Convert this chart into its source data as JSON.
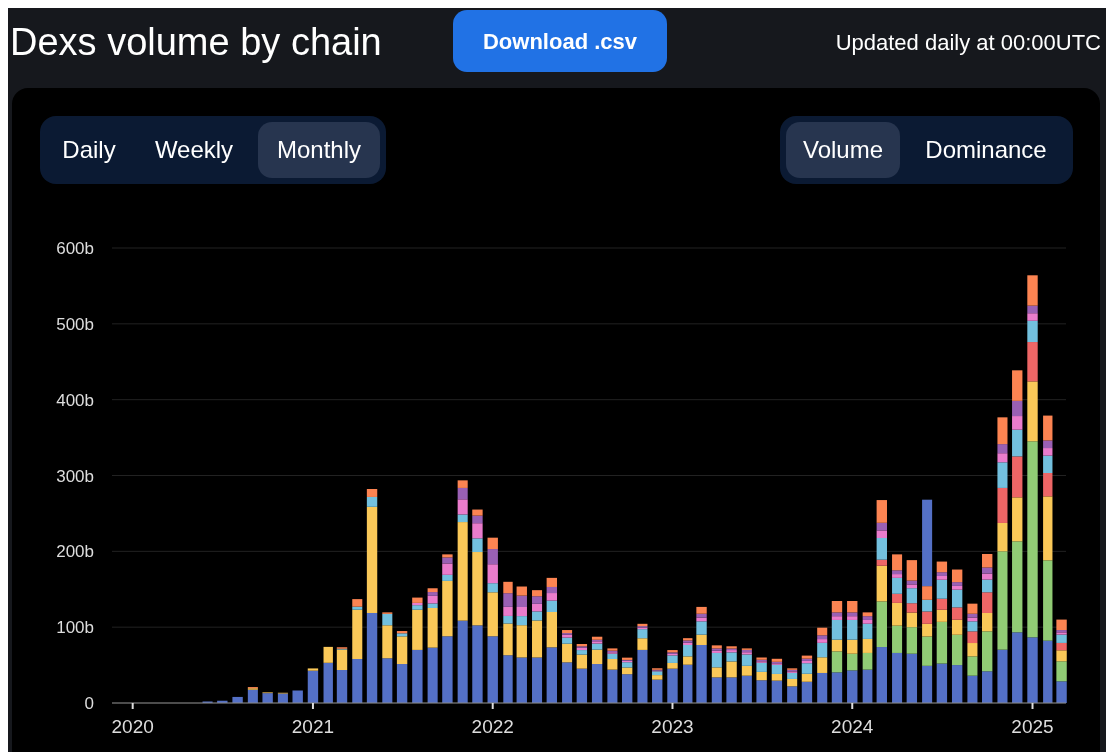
{
  "chart_data": {
    "type": "bar",
    "stacked": true,
    "title": "Dexs volume by chain",
    "annotations": [
      "Download .csv",
      "Updated daily at 00:00UTC",
      "Daily",
      "Weekly",
      "Monthly",
      "Volume",
      "Dominance"
    ],
    "x": [
      "2020-01",
      "2020-02",
      "2020-03",
      "2020-04",
      "2020-05",
      "2020-06",
      "2020-07",
      "2020-08",
      "2020-09",
      "2020-10",
      "2020-11",
      "2020-12",
      "2021-01",
      "2021-02",
      "2021-03",
      "2021-04",
      "2021-05",
      "2021-06",
      "2021-07",
      "2021-08",
      "2021-09",
      "2021-10",
      "2021-11",
      "2021-12",
      "2022-01",
      "2022-02",
      "2022-03",
      "2022-04",
      "2022-05",
      "2022-06",
      "2022-07",
      "2022-08",
      "2022-09",
      "2022-10",
      "2022-11",
      "2022-12",
      "2023-01",
      "2023-02",
      "2023-03",
      "2023-04",
      "2023-05",
      "2023-06",
      "2023-07",
      "2023-08",
      "2023-09",
      "2023-10",
      "2023-11",
      "2023-12",
      "2024-01",
      "2024-02",
      "2024-03",
      "2024-04",
      "2024-05",
      "2024-06",
      "2024-07",
      "2024-08",
      "2024-09",
      "2024-10",
      "2024-11",
      "2024-12",
      "2025-01",
      "2025-02",
      "2025-03"
    ],
    "series": [
      {
        "color": "#5470c6",
        "values": [
          0,
          0,
          0,
          0,
          null,
          2,
          3,
          8,
          17.5,
          13,
          12.5,
          16.5,
          42.6,
          53,
          43.5,
          58,
          118.7,
          59,
          51.4,
          70,
          73,
          88,
          108.6,
          102.4,
          88,
          63,
          60,
          60,
          73.4,
          53.6,
          45.3,
          51.4,
          44,
          38,
          70,
          30.8,
          45.3,
          50.5,
          76.5,
          33.8,
          33.8,
          36,
          30,
          29.5,
          22,
          28,
          39.6,
          40.4,
          43,
          44,
          73.8,
          66,
          65,
          49,
          52,
          50,
          36,
          41.8,
          70.3,
          93.2,
          86.6,
          82.2,
          28.6
        ]
      },
      {
        "color": "#91cc75",
        "values": [
          0,
          0,
          0,
          0,
          0,
          0,
          0,
          0,
          0,
          0,
          0,
          0,
          0,
          0,
          0,
          0,
          0,
          0,
          0,
          0,
          0,
          0,
          0,
          0,
          0,
          0,
          0,
          0,
          0,
          0,
          0,
          0,
          0,
          0,
          0,
          0,
          0,
          0,
          0,
          0,
          0,
          0,
          0,
          0,
          0,
          0,
          0,
          27.7,
          22,
          22,
          60.2,
          36,
          35,
          38.7,
          55,
          40,
          25.5,
          52.7,
          129.7,
          120,
          258.5,
          105.9,
          26.4
        ]
      },
      {
        "color": "#fac858",
        "values": [
          0,
          0,
          0,
          0,
          0,
          0,
          0,
          0,
          2,
          1,
          1,
          null,
          3,
          21,
          27,
          65,
          140,
          43.5,
          36.5,
          53,
          52.3,
          73,
          130,
          96.7,
          58,
          41.8,
          42.6,
          48.8,
          46.6,
          24.6,
          18.5,
          19,
          14,
          8.8,
          15.4,
          6,
          7.5,
          11,
          13.6,
          13.2,
          21,
          13,
          11,
          8.8,
          9.7,
          10.5,
          20.7,
          15.4,
          18.5,
          18.5,
          47,
          30,
          19.3,
          16.7,
          16,
          19.8,
          17.6,
          24.2,
          37.4,
          58,
          79,
          84.4,
          14.5
        ]
      },
      {
        "color": "#ee6666",
        "values": [
          0,
          0,
          0,
          0,
          0,
          0,
          0,
          0,
          0,
          0,
          0,
          0,
          0,
          0,
          0,
          0,
          0,
          0,
          0,
          0,
          0,
          0,
          0,
          0,
          0,
          0,
          0,
          0,
          0,
          0,
          0,
          0,
          0,
          0,
          0,
          0,
          0,
          0,
          0,
          0,
          0,
          0,
          0,
          0,
          0,
          0,
          0,
          0,
          0,
          0,
          8,
          12,
          12.3,
          16.3,
          14.5,
          16.3,
          15.4,
          27.3,
          46.2,
          54,
          51.9,
          30.8,
          9.7
        ]
      },
      {
        "color": "#73c0de",
        "values": [
          0,
          0,
          0,
          0,
          0,
          0,
          0,
          0,
          0,
          0,
          0,
          0,
          0,
          0,
          1,
          4,
          13,
          15,
          4,
          6,
          6,
          8,
          10,
          18,
          12,
          10,
          12,
          12,
          15,
          8,
          6,
          8,
          7,
          7,
          12,
          5,
          10,
          15,
          17.6,
          19,
          12,
          15,
          12,
          12,
          8,
          14,
          19,
          26,
          26,
          20,
          28.6,
          21,
          19.8,
          15.4,
          25,
          23.3,
          13.2,
          16.7,
          33.8,
          35.2,
          28,
          22.9,
          11
        ]
      },
      {
        "color": "#ea7ccc",
        "values": [
          0,
          0,
          0,
          0,
          0,
          0,
          0,
          0,
          0,
          0,
          0,
          0,
          0,
          0,
          0,
          0,
          0,
          0,
          0,
          3,
          10,
          15,
          20,
          20,
          25,
          12,
          12,
          10,
          10,
          4,
          3,
          3,
          2,
          2,
          2,
          1,
          2,
          3,
          5,
          3,
          3,
          3,
          2,
          2,
          2,
          3,
          5,
          5,
          5,
          5,
          10,
          5,
          5,
          0,
          5,
          5,
          5,
          8,
          12,
          18,
          10,
          10,
          3
        ]
      },
      {
        "color": "#9a60b4",
        "values": [
          0,
          0,
          0,
          0,
          0,
          0,
          0,
          0,
          0,
          0,
          0,
          0,
          0,
          0,
          0,
          0,
          0,
          0,
          0,
          0,
          5,
          8,
          15,
          10,
          20,
          18,
          15,
          10,
          8,
          2,
          2,
          2,
          2,
          1,
          2,
          1,
          2,
          3,
          5,
          3,
          2,
          3,
          2,
          2,
          2,
          3,
          5,
          5,
          5,
          5,
          10,
          5,
          5,
          0,
          5,
          5,
          5,
          8,
          12,
          20,
          10,
          10,
          3
        ]
      },
      {
        "color": "#fc8452",
        "values": [
          0,
          0,
          0,
          0,
          0,
          0,
          0,
          0,
          1.5,
          0,
          0,
          0,
          0,
          0,
          2,
          10,
          10.5,
          2,
          3,
          7,
          5,
          4,
          10,
          8,
          15,
          15,
          12,
          8,
          12,
          4,
          3,
          4,
          3,
          3,
          3,
          2,
          3,
          3,
          9,
          4,
          3,
          2,
          3,
          4,
          2,
          4,
          10,
          15,
          15,
          5,
          30,
          21,
          27,
          18,
          14,
          16.6,
          13.3,
          17.8,
          35.3,
          40.3,
          40,
          32.8,
          13.8
        ]
      },
      {
        "color": "#5470c6",
        "values": [
          0,
          0,
          0,
          0,
          0,
          0,
          0,
          0,
          0,
          0,
          0,
          0,
          0,
          0,
          0,
          0,
          0,
          0,
          0,
          0,
          0,
          0,
          0,
          0,
          0,
          0,
          0,
          0,
          0,
          0,
          0,
          0,
          0,
          0,
          0,
          0,
          0,
          0,
          0,
          0,
          0,
          0,
          0,
          0,
          0,
          0,
          0,
          0,
          0,
          0,
          0,
          0,
          0,
          114,
          0,
          0,
          0,
          0,
          0,
          0,
          0,
          0,
          0
        ]
      }
    ],
    "xlim": [
      "2019-11-20",
      "2025-03-10"
    ],
    "xticks": [
      "2020",
      "2021",
      "2022",
      "2023",
      "2024",
      "2025"
    ],
    "ylim": [
      0,
      600
    ],
    "yticks": [
      {
        "value": 0,
        "label": "0"
      },
      {
        "value": 100,
        "label": "100b"
      },
      {
        "value": 200,
        "label": "200b"
      },
      {
        "value": 300,
        "label": "300b"
      },
      {
        "value": 400,
        "label": "400b"
      },
      {
        "value": 500,
        "label": "500b"
      },
      {
        "value": 600,
        "label": "600b"
      }
    ],
    "grid": "y"
  }
}
